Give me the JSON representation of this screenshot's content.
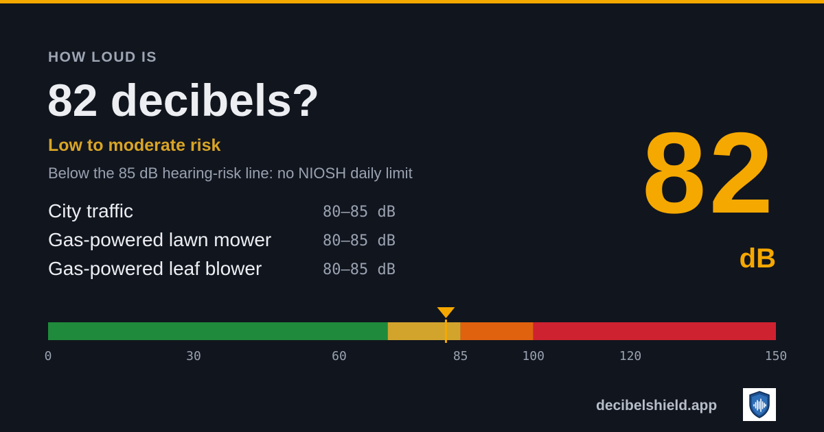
{
  "header": {
    "kicker": "HOW LOUD IS",
    "headline": "82 decibels?",
    "risk_label": "Low to moderate risk",
    "risk_description": "Below the 85 dB hearing-risk line: no NIOSH daily limit"
  },
  "examples": [
    {
      "name": "City traffic",
      "range": "80–85 dB"
    },
    {
      "name": "Gas-powered lawn mower",
      "range": "80–85 dB"
    },
    {
      "name": "Gas-powered leaf blower",
      "range": "80–85 dB"
    }
  ],
  "level": {
    "value": "82",
    "unit": "dB"
  },
  "scale": {
    "min": 0,
    "max": 150,
    "marker_db": 82,
    "marker_color": "#f5a800",
    "segments": [
      {
        "from": 0,
        "to": 70,
        "color": "#1f8a3b"
      },
      {
        "from": 70,
        "to": 85,
        "color": "#d3a42c"
      },
      {
        "from": 85,
        "to": 100,
        "color": "#e0620f"
      },
      {
        "from": 100,
        "to": 150,
        "color": "#cf2230"
      }
    ],
    "ticks": [
      0,
      30,
      60,
      85,
      100,
      120,
      150
    ]
  },
  "footer": {
    "site": "decibelshield.app",
    "logo_icon": "shield-soundwave-icon"
  },
  "colors": {
    "background": "#11151e",
    "accent": "#f5a800",
    "risk_text": "#d9a526"
  }
}
